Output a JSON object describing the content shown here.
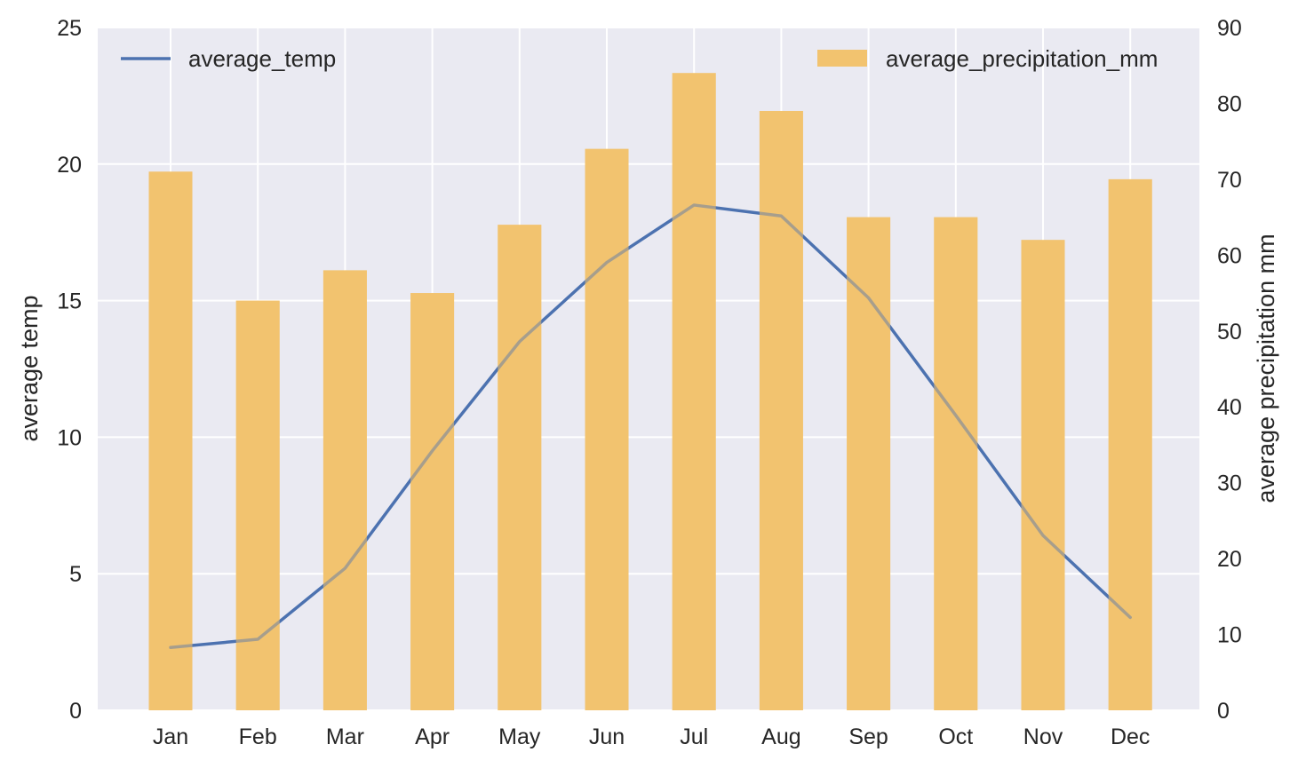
{
  "chart_data": {
    "type": "bar+line",
    "categories": [
      "Jan",
      "Feb",
      "Mar",
      "Apr",
      "May",
      "Jun",
      "Jul",
      "Aug",
      "Sep",
      "Oct",
      "Nov",
      "Dec"
    ],
    "series": [
      {
        "name": "average_temp",
        "type": "line",
        "axis": "left",
        "color": "#4c72b0",
        "values": [
          2.3,
          2.6,
          5.2,
          9.5,
          13.5,
          16.4,
          18.5,
          18.1,
          15.1,
          10.8,
          6.4,
          3.4
        ]
      },
      {
        "name": "average_precipitation_mm",
        "type": "bar",
        "axis": "right",
        "color": "#f2c36f",
        "values": [
          71,
          54,
          58,
          55,
          64,
          74,
          84,
          79,
          65,
          65,
          62,
          70
        ]
      }
    ],
    "ylabel_left": "average temp",
    "ylabel_right": "average precipitation mm",
    "ylim_left": [
      0,
      25
    ],
    "ylim_right": [
      0,
      90
    ],
    "yticks_left": [
      0,
      5,
      10,
      15,
      20,
      25
    ],
    "yticks_right": [
      0,
      10,
      20,
      30,
      40,
      50,
      60,
      70,
      80,
      90
    ],
    "grid": true,
    "legend_line_position": "top-left",
    "legend_bar_position": "top-right"
  },
  "colors": {
    "plot_background": "#eaeaf2",
    "grid": "#ffffff",
    "text": "#262626"
  }
}
